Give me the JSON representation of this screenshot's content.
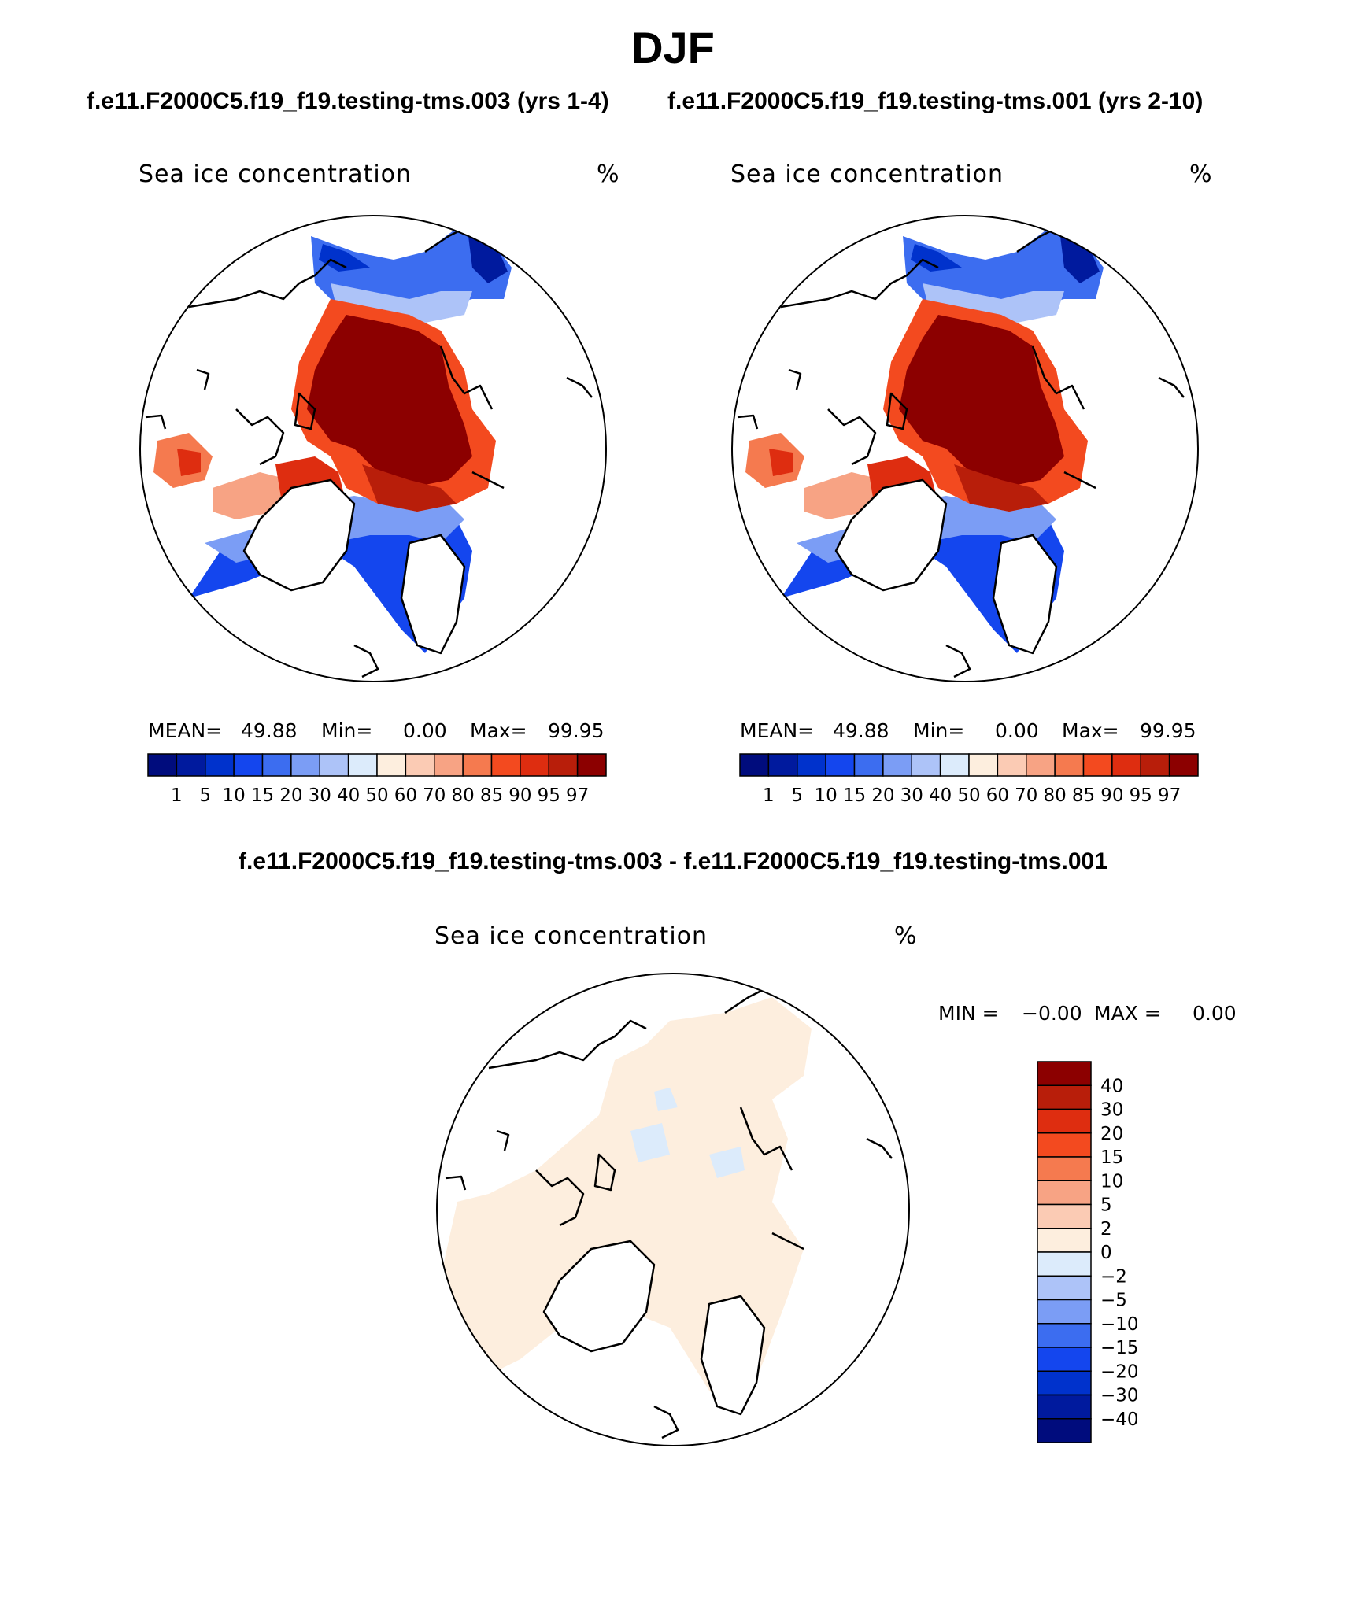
{
  "title": "DJF",
  "case1_title": "f.e11.F2000C5.f19_f19.testing-tms.003 (yrs 1-4)",
  "case2_title": "f.e11.F2000C5.f19_f19.testing-tms.001 (yrs 2-10)",
  "diff_title": "f.e11.F2000C5.f19_f19.testing-tms.003 - f.e11.F2000C5.f19_f19.testing-tms.001",
  "panels": [
    {
      "variable": "Sea ice concentration",
      "units": "%",
      "stats": {
        "mean_label": "MEAN=",
        "mean": "49.88",
        "min_label": "Min=",
        "min": "0.00",
        "max_label": "Max=",
        "max": "99.95"
      }
    },
    {
      "variable": "Sea ice concentration",
      "units": "%",
      "stats": {
        "mean_label": "MEAN=",
        "mean": "49.88",
        "min_label": "Min=",
        "min": "0.00",
        "max_label": "Max=",
        "max": "99.95"
      }
    },
    {
      "variable": "Sea ice concentration",
      "units": "%",
      "stats": {
        "min_label": "MIN =",
        "min": "−0.00",
        "max_label": "MAX =",
        "max": "0.00"
      }
    }
  ],
  "colorbar_main": {
    "colors": [
      "#000c7d",
      "#001a9e",
      "#0032cc",
      "#1446ee",
      "#3c6df0",
      "#7b9df5",
      "#adc3f8",
      "#dcebfb",
      "#fdeede",
      "#fbcbb4",
      "#f7a384",
      "#f57a4f",
      "#f34a1f",
      "#de2d10",
      "#b81e0a",
      "#8c0000"
    ],
    "labels": [
      "1",
      "5",
      "10",
      "15",
      "20",
      "30",
      "40",
      "50",
      "60",
      "70",
      "80",
      "85",
      "90",
      "95",
      "97"
    ]
  },
  "colorbar_diff": {
    "colors": [
      "#8c0000",
      "#b81e0a",
      "#de2d10",
      "#f34a1f",
      "#f57a4f",
      "#f7a384",
      "#fbcbb4",
      "#fdeede",
      "#dcebfb",
      "#adc3f8",
      "#7b9df5",
      "#3c6df0",
      "#1446ee",
      "#0032cc",
      "#001a9e",
      "#000c7d"
    ],
    "labels": [
      "40",
      "30",
      "20",
      "15",
      "10",
      "5",
      "2",
      "0",
      "−2",
      "−5",
      "−10",
      "−15",
      "−20",
      "−30",
      "−40"
    ]
  },
  "colors": {
    "ice_high": "#8c0000",
    "ice_low": "#000c7d",
    "land_outline": "#000000",
    "diff_fill": "#fdeede",
    "diff_neg": "#dcebfb"
  }
}
